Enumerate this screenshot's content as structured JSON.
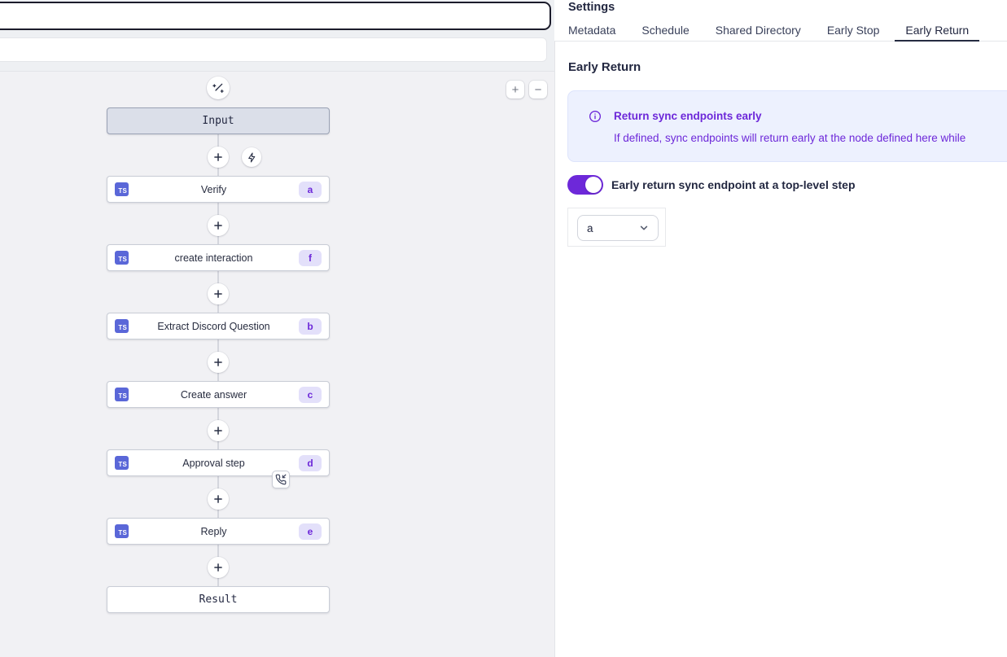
{
  "colors": {
    "accent_purple": "#6d28d9",
    "ts_badge_blue": "#5a67d8",
    "badge_bg": "#e3e0fa",
    "info_bg": "#edf1fe",
    "info_border": "#dde4fc",
    "active_tab_underline": "#252b41",
    "canvas_bg": "#f1f1f4",
    "node_border": "#c9cdd6",
    "input_node_bg": "#dbdfe9",
    "dark_text": "#232841"
  },
  "top_bar": {
    "focused_input_value": ""
  },
  "canvas": {
    "step_language_badge": "TS",
    "controls": {
      "wand_icon": "wand-sparkles-icon",
      "bolt_icon": "lightning-bolt-icon",
      "zoom_in_label": "+",
      "zoom_out_label": "−"
    },
    "nodes": [
      {
        "type": "terminal",
        "variant": "input",
        "label": "Input"
      },
      {
        "type": "step",
        "label": "Verify",
        "badge": "a"
      },
      {
        "type": "step",
        "label": "create interaction",
        "badge": "f"
      },
      {
        "type": "step",
        "label": "Extract Discord Question",
        "badge": "b"
      },
      {
        "type": "step",
        "label": "Create answer",
        "badge": "c"
      },
      {
        "type": "step",
        "label": "Approval step",
        "badge": "d",
        "callback_icon": true
      },
      {
        "type": "step",
        "label": "Reply",
        "badge": "e"
      },
      {
        "type": "terminal",
        "variant": "result",
        "label": "Result"
      }
    ]
  },
  "settings": {
    "title": "Settings",
    "tabs": [
      {
        "label": "Metadata",
        "active": false
      },
      {
        "label": "Schedule",
        "active": false
      },
      {
        "label": "Shared Directory",
        "active": false
      },
      {
        "label": "Early Stop",
        "active": false
      },
      {
        "label": "Early Return",
        "active": true
      }
    ],
    "section_title": "Early Return",
    "info_box": {
      "icon": "info-circle-icon",
      "title": "Return sync endpoints early",
      "body": "If defined, sync endpoints will return early at the node defined here while"
    },
    "toggle": {
      "label": "Early return sync endpoint at a top-level step",
      "on": true
    },
    "step_select": {
      "value": "a",
      "icon": "chevron-down-icon"
    }
  }
}
